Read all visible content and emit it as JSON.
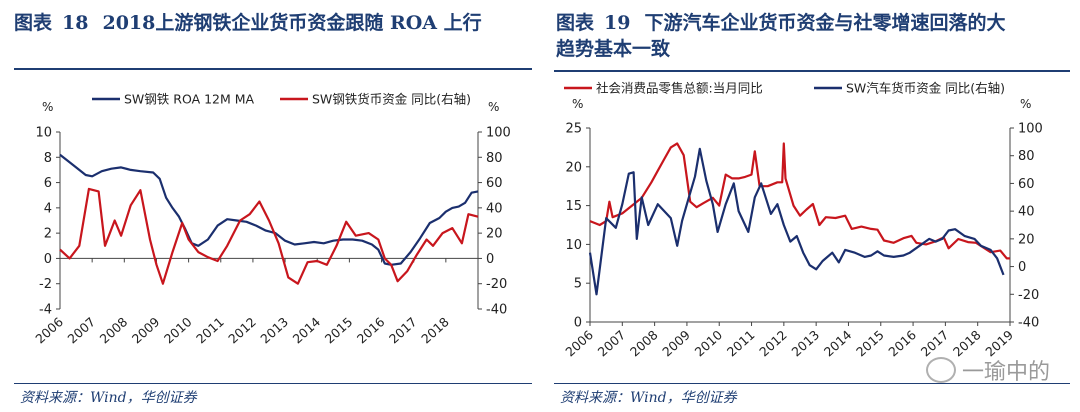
{
  "left": {
    "title_prefix": "图表",
    "title_num": "18",
    "title_text": "2018上游钢铁企业货币资金跟随 ROA 上行",
    "source": "资料来源：Wind，华创证券",
    "colors": {
      "blue": "#1b2f6e",
      "red": "#c8161d"
    },
    "chart_data": {
      "type": "line",
      "y_left_unit": "%",
      "y_right_unit": "%",
      "ylim_left": [
        -4,
        10
      ],
      "ylim_right": [
        -40,
        100
      ],
      "yticks_left": [
        "10",
        "8",
        "6",
        "4",
        "2",
        "0",
        "-2",
        "-4"
      ],
      "yticks_right": [
        "100",
        "80",
        "60",
        "40",
        "20",
        "0",
        "-20",
        "-40"
      ],
      "xlim": [
        2006,
        2019
      ],
      "xticks": [
        "2006",
        "2007",
        "2008",
        "2009",
        "2010",
        "2011",
        "2012",
        "2013",
        "2014",
        "2015",
        "2016",
        "2017",
        "2018"
      ],
      "series": [
        {
          "name": "SW钢铁 ROA 12M MA",
          "axis": "left",
          "color": "#1b2f6e",
          "points": [
            [
              2006.0,
              8.2
            ],
            [
              2006.2,
              7.8
            ],
            [
              2006.5,
              7.2
            ],
            [
              2006.8,
              6.6
            ],
            [
              2007.0,
              6.5
            ],
            [
              2007.3,
              6.9
            ],
            [
              2007.6,
              7.1
            ],
            [
              2007.9,
              7.2
            ],
            [
              2008.2,
              7.0
            ],
            [
              2008.5,
              6.9
            ],
            [
              2008.9,
              6.8
            ],
            [
              2009.1,
              6.3
            ],
            [
              2009.3,
              4.8
            ],
            [
              2009.5,
              4.0
            ],
            [
              2009.7,
              3.3
            ],
            [
              2009.9,
              2.3
            ],
            [
              2010.1,
              1.2
            ],
            [
              2010.3,
              1.0
            ],
            [
              2010.6,
              1.5
            ],
            [
              2010.9,
              2.6
            ],
            [
              2011.2,
              3.1
            ],
            [
              2011.5,
              3.0
            ],
            [
              2011.8,
              2.9
            ],
            [
              2012.1,
              2.6
            ],
            [
              2012.4,
              2.2
            ],
            [
              2012.7,
              2.0
            ],
            [
              2013.0,
              1.4
            ],
            [
              2013.3,
              1.1
            ],
            [
              2013.6,
              1.2
            ],
            [
              2013.9,
              1.3
            ],
            [
              2014.2,
              1.2
            ],
            [
              2014.5,
              1.4
            ],
            [
              2014.8,
              1.5
            ],
            [
              2015.1,
              1.5
            ],
            [
              2015.4,
              1.4
            ],
            [
              2015.7,
              1.1
            ],
            [
              2015.9,
              0.7
            ],
            [
              2016.1,
              -0.4
            ],
            [
              2016.3,
              -0.5
            ],
            [
              2016.6,
              -0.4
            ],
            [
              2016.9,
              0.5
            ],
            [
              2017.2,
              1.6
            ],
            [
              2017.5,
              2.8
            ],
            [
              2017.8,
              3.2
            ],
            [
              2018.0,
              3.7
            ],
            [
              2018.2,
              4.0
            ],
            [
              2018.4,
              4.1
            ],
            [
              2018.6,
              4.4
            ],
            [
              2018.8,
              5.2
            ],
            [
              2019.0,
              5.3
            ]
          ]
        },
        {
          "name": "SW钢铁货币资金 同比(右轴)",
          "axis": "right",
          "color": "#c8161d",
          "points": [
            [
              2006.0,
              7
            ],
            [
              2006.3,
              0
            ],
            [
              2006.6,
              10
            ],
            [
              2006.9,
              55
            ],
            [
              2007.2,
              53
            ],
            [
              2007.4,
              10
            ],
            [
              2007.7,
              30
            ],
            [
              2007.9,
              18
            ],
            [
              2008.2,
              42
            ],
            [
              2008.5,
              54
            ],
            [
              2008.8,
              15
            ],
            [
              2009.0,
              -5
            ],
            [
              2009.2,
              -20
            ],
            [
              2009.5,
              5
            ],
            [
              2009.8,
              28
            ],
            [
              2010.0,
              15
            ],
            [
              2010.3,
              5
            ],
            [
              2010.6,
              1
            ],
            [
              2010.9,
              -2
            ],
            [
              2011.2,
              10
            ],
            [
              2011.6,
              30
            ],
            [
              2011.9,
              35
            ],
            [
              2012.2,
              45
            ],
            [
              2012.5,
              30
            ],
            [
              2012.8,
              12
            ],
            [
              2013.1,
              -15
            ],
            [
              2013.4,
              -20
            ],
            [
              2013.7,
              -3
            ],
            [
              2014.0,
              -2
            ],
            [
              2014.3,
              -5
            ],
            [
              2014.6,
              10
            ],
            [
              2014.9,
              29
            ],
            [
              2015.2,
              18
            ],
            [
              2015.6,
              20
            ],
            [
              2015.9,
              15
            ],
            [
              2016.1,
              0
            ],
            [
              2016.3,
              -5
            ],
            [
              2016.5,
              -18
            ],
            [
              2016.8,
              -10
            ],
            [
              2017.1,
              3
            ],
            [
              2017.4,
              15
            ],
            [
              2017.6,
              10
            ],
            [
              2017.9,
              20
            ],
            [
              2018.2,
              24
            ],
            [
              2018.5,
              12
            ],
            [
              2018.7,
              35
            ],
            [
              2019.0,
              33
            ]
          ]
        }
      ]
    }
  },
  "right": {
    "title_prefix": "图表",
    "title_num": "19",
    "title_line1": "下游汽车企业货币资金与社零增速回落的大",
    "title_line2": "趋势基本一致",
    "source": "资料来源：Wind，华创证券",
    "colors": {
      "red": "#c8161d",
      "blue": "#1b2f6e"
    },
    "chart_data": {
      "type": "line",
      "y_left_unit": "%",
      "y_right_unit": "%",
      "ylim_left": [
        0,
        25
      ],
      "ylim_right": [
        -40,
        100
      ],
      "yticks_left": [
        "25",
        "20",
        "15",
        "10",
        "5",
        "0"
      ],
      "yticks_right": [
        "100",
        "80",
        "60",
        "40",
        "20",
        "0",
        "-20",
        "-40"
      ],
      "xlim": [
        2006,
        2019
      ],
      "xticks": [
        "2006",
        "2007",
        "2008",
        "2009",
        "2010",
        "2011",
        "2012",
        "2013",
        "2014",
        "2015",
        "2016",
        "2017",
        "2018",
        "2019"
      ],
      "series": [
        {
          "name": "社会消费品零售总额:当月同比",
          "axis": "left",
          "color": "#c8161d",
          "points": [
            [
              2006.0,
              13.0
            ],
            [
              2006.3,
              12.5
            ],
            [
              2006.5,
              13.0
            ],
            [
              2006.6,
              15.5
            ],
            [
              2006.7,
              13.5
            ],
            [
              2007.0,
              14.0
            ],
            [
              2007.3,
              15.0
            ],
            [
              2007.6,
              16.0
            ],
            [
              2007.9,
              18.0
            ],
            [
              2008.1,
              19.5
            ],
            [
              2008.3,
              21.0
            ],
            [
              2008.5,
              22.5
            ],
            [
              2008.7,
              23.0
            ],
            [
              2008.9,
              21.5
            ],
            [
              2009.1,
              15.5
            ],
            [
              2009.3,
              14.8
            ],
            [
              2009.5,
              15.3
            ],
            [
              2009.8,
              16.0
            ],
            [
              2010.0,
              15.0
            ],
            [
              2010.2,
              19.0
            ],
            [
              2010.4,
              18.5
            ],
            [
              2010.6,
              18.5
            ],
            [
              2010.8,
              18.7
            ],
            [
              2011.0,
              19.0
            ],
            [
              2011.1,
              22.0
            ],
            [
              2011.25,
              17.5
            ],
            [
              2011.5,
              17.5
            ],
            [
              2011.8,
              18.0
            ],
            [
              2011.95,
              18.0
            ],
            [
              2012.0,
              23.0
            ],
            [
              2012.05,
              18.5
            ],
            [
              2012.3,
              15.0
            ],
            [
              2012.5,
              13.7
            ],
            [
              2012.7,
              14.5
            ],
            [
              2012.9,
              15.2
            ],
            [
              2013.1,
              12.5
            ],
            [
              2013.3,
              13.5
            ],
            [
              2013.6,
              13.4
            ],
            [
              2013.9,
              13.7
            ],
            [
              2014.1,
              12.0
            ],
            [
              2014.4,
              12.3
            ],
            [
              2014.7,
              12.0
            ],
            [
              2014.9,
              11.9
            ],
            [
              2015.1,
              10.5
            ],
            [
              2015.4,
              10.2
            ],
            [
              2015.7,
              10.8
            ],
            [
              2015.95,
              11.1
            ],
            [
              2016.1,
              10.2
            ],
            [
              2016.4,
              10.0
            ],
            [
              2016.7,
              10.4
            ],
            [
              2016.95,
              10.9
            ],
            [
              2017.1,
              9.5
            ],
            [
              2017.4,
              10.7
            ],
            [
              2017.7,
              10.3
            ],
            [
              2017.95,
              10.2
            ],
            [
              2018.1,
              9.8
            ],
            [
              2018.4,
              9.0
            ],
            [
              2018.7,
              9.2
            ],
            [
              2018.9,
              8.2
            ],
            [
              2019.0,
              8.2
            ]
          ]
        },
        {
          "name": "SW汽车货币资金 同比(右轴)",
          "axis": "right",
          "color": "#1b2f6e",
          "points": [
            [
              2006.0,
              10
            ],
            [
              2006.2,
              -20
            ],
            [
              2006.5,
              35
            ],
            [
              2006.8,
              28
            ],
            [
              2007.0,
              45
            ],
            [
              2007.2,
              67
            ],
            [
              2007.35,
              68
            ],
            [
              2007.45,
              20
            ],
            [
              2007.6,
              50
            ],
            [
              2007.8,
              30
            ],
            [
              2008.1,
              45
            ],
            [
              2008.5,
              35
            ],
            [
              2008.7,
              15
            ],
            [
              2008.85,
              33
            ],
            [
              2009.0,
              45
            ],
            [
              2009.25,
              65
            ],
            [
              2009.4,
              85
            ],
            [
              2009.6,
              62
            ],
            [
              2009.8,
              45
            ],
            [
              2009.95,
              25
            ],
            [
              2010.2,
              45
            ],
            [
              2010.45,
              60
            ],
            [
              2010.6,
              40
            ],
            [
              2010.9,
              25
            ],
            [
              2011.1,
              50
            ],
            [
              2011.3,
              60
            ],
            [
              2011.6,
              38
            ],
            [
              2011.8,
              45
            ],
            [
              2012.0,
              30
            ],
            [
              2012.2,
              18
            ],
            [
              2012.4,
              22
            ],
            [
              2012.6,
              10
            ],
            [
              2012.8,
              1
            ],
            [
              2013.0,
              -2
            ],
            [
              2013.2,
              4
            ],
            [
              2013.5,
              10
            ],
            [
              2013.7,
              3
            ],
            [
              2013.9,
              12
            ],
            [
              2014.2,
              10
            ],
            [
              2014.5,
              7
            ],
            [
              2014.7,
              8
            ],
            [
              2014.9,
              11
            ],
            [
              2015.1,
              8
            ],
            [
              2015.4,
              7
            ],
            [
              2015.7,
              8
            ],
            [
              2015.9,
              10
            ],
            [
              2016.2,
              15
            ],
            [
              2016.5,
              20
            ],
            [
              2016.7,
              18
            ],
            [
              2016.9,
              20
            ],
            [
              2017.1,
              26
            ],
            [
              2017.3,
              27
            ],
            [
              2017.6,
              22
            ],
            [
              2017.9,
              20
            ],
            [
              2018.1,
              15
            ],
            [
              2018.4,
              12
            ],
            [
              2018.6,
              6
            ],
            [
              2018.8,
              -6
            ]
          ]
        }
      ]
    }
  },
  "watermark": "一瑜中的"
}
